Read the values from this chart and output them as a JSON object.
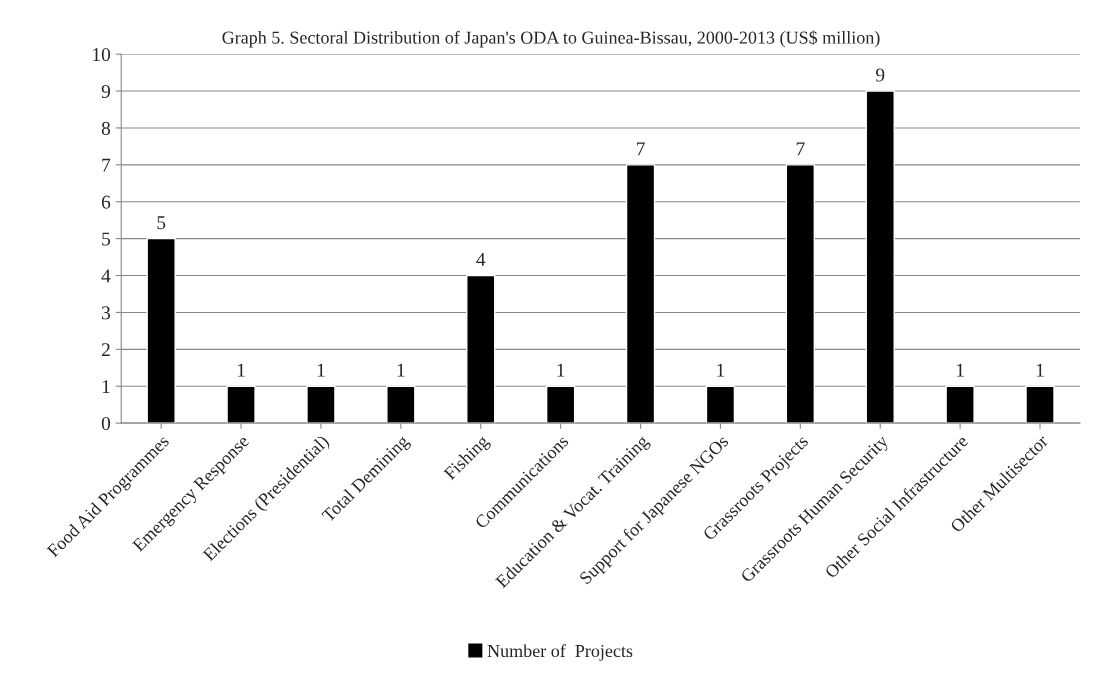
{
  "chart_data": {
    "type": "bar",
    "title": "Graph 5. Sectoral Distribution of Japan's ODA to Guinea-Bissau, 2000-2013 (US$ million)",
    "categories": [
      "Food Aid Programmes",
      "Emergency Response",
      "Elections (Presidential)",
      "Total Demining",
      "Fishing",
      "Communications",
      "Education & Vocat. Training",
      "Support for Japanese NGOs",
      "Grassroots Projects",
      "Grassroots Human Security",
      "Other Social Infrastructure",
      "Other Multisector"
    ],
    "series": [
      {
        "name": "Number of  Projects",
        "color": "#000000",
        "values": [
          5,
          1,
          1,
          1,
          4,
          1,
          7,
          1,
          7,
          9,
          1,
          1
        ]
      }
    ],
    "ylim": [
      0,
      10
    ],
    "yticks": [
      0,
      1,
      2,
      3,
      4,
      5,
      6,
      7,
      8,
      9,
      10
    ],
    "grid": "y",
    "legend": "bottom",
    "data_labels": true
  }
}
